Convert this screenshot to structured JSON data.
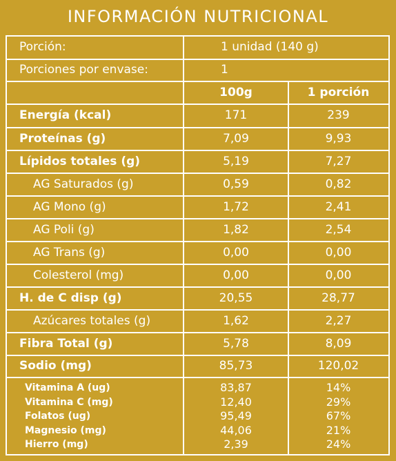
{
  "title": "INFORMACIÓN NUTRICIONAL",
  "portion": {
    "label": "Porción:",
    "value": "1 unidad (140 g)"
  },
  "servings": {
    "label": "Porciones por envase:",
    "value": "1"
  },
  "headers": {
    "col1": "",
    "col2": "100g",
    "col3": "1 porción"
  },
  "rows": [
    {
      "label": "Energía (kcal)",
      "v100": "171",
      "vport": "239",
      "bold": true,
      "indent": false
    },
    {
      "label": "Proteínas (g)",
      "v100": "7,09",
      "vport": "9,93",
      "bold": true,
      "indent": false
    },
    {
      "label": "Lípidos totales (g)",
      "v100": "5,19",
      "vport": "7,27",
      "bold": true,
      "indent": false
    },
    {
      "label": "AG Saturados (g)",
      "v100": "0,59",
      "vport": "0,82",
      "bold": false,
      "indent": true
    },
    {
      "label": "AG Mono (g)",
      "v100": "1,72",
      "vport": "2,41",
      "bold": false,
      "indent": true
    },
    {
      "label": "AG Poli (g)",
      "v100": "1,82",
      "vport": "2,54",
      "bold": false,
      "indent": true
    },
    {
      "label": "AG Trans (g)",
      "v100": "0,00",
      "vport": "0,00",
      "bold": false,
      "indent": true
    },
    {
      "label": "Colesterol (mg)",
      "v100": "0,00",
      "vport": "0,00",
      "bold": false,
      "indent": true
    },
    {
      "label": "H. de C disp (g)",
      "v100": "20,55",
      "vport": "28,77",
      "bold": true,
      "indent": false
    },
    {
      "label": "Azúcares totales (g)",
      "v100": "1,62",
      "vport": "2,27",
      "bold": false,
      "indent": true
    },
    {
      "label": "Fibra Total (g)",
      "v100": "5,78",
      "vport": "8,09",
      "bold": true,
      "indent": false
    },
    {
      "label": "Sodio (mg)",
      "v100": "85,73",
      "vport": "120,02",
      "bold": true,
      "indent": false
    }
  ],
  "vitamins": [
    {
      "label": "Vitamina A (ug)",
      "v100": "83,87",
      "vport": "14%"
    },
    {
      "label": "Vitamina C (mg)",
      "v100": "12,40",
      "vport": "29%"
    },
    {
      "label": "Folatos (ug)",
      "v100": "95,49",
      "vport": "67%"
    },
    {
      "label": "Magnesio (mg)",
      "v100": "44,06",
      "vport": "21%"
    },
    {
      "label": "Hierro (mg)",
      "v100": "2,39",
      "vport": "24%"
    }
  ],
  "colors": {
    "background": "#c9a02b",
    "lines": "#ffffff",
    "text": "#ffffff"
  }
}
